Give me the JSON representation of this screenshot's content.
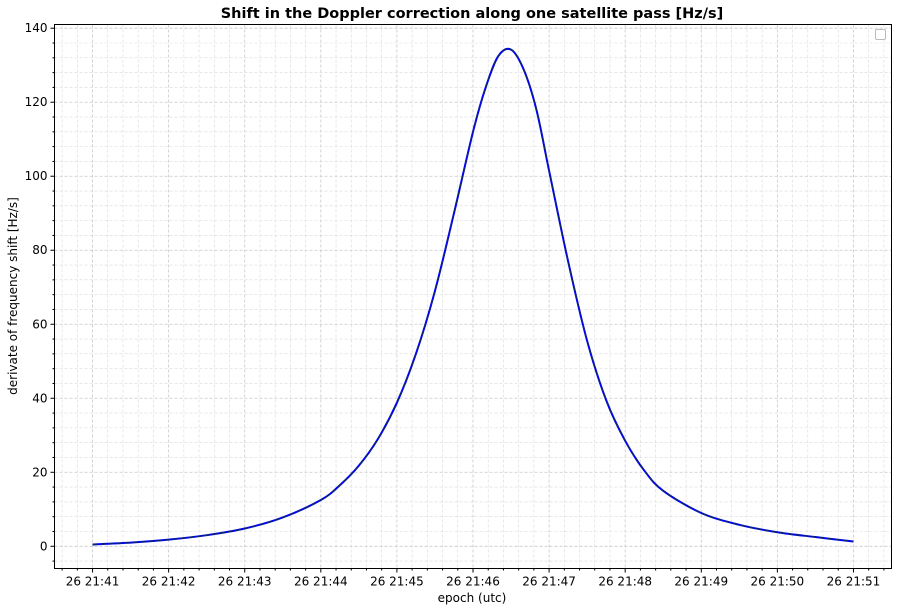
{
  "chart_data": {
    "type": "line",
    "title": "Shift in the Doppler correction along one satellite pass [Hz/s]",
    "xlabel": "epoch (utc)",
    "ylabel": "derivate of frequency shift [Hz/s]",
    "x_ticks": [
      "26 21:41",
      "26 21:42",
      "26 21:43",
      "26 21:44",
      "26 21:45",
      "26 21:46",
      "26 21:47",
      "26 21:48",
      "26 21:49",
      "26 21:50",
      "26 21:51"
    ],
    "xlim": [
      "21:40:30",
      "21:51:30"
    ],
    "ylim": [
      -6,
      141
    ],
    "y_ticks": [
      0,
      20,
      40,
      60,
      80,
      100,
      120,
      140
    ],
    "grid": true,
    "minor_grid": true,
    "legend": "top-right (empty)",
    "series": [
      {
        "color": "#0000ff",
        "style": "solid",
        "x": [
          "21:41:00",
          "21:41:30",
          "21:42:00",
          "21:42:30",
          "21:43:00",
          "21:43:30",
          "21:44:00",
          "21:44:15",
          "21:44:30",
          "21:44:45",
          "21:45:00",
          "21:45:15",
          "21:45:30",
          "21:45:45",
          "21:46:00",
          "21:46:10",
          "21:46:20",
          "21:46:30",
          "21:46:40",
          "21:46:50",
          "21:47:00",
          "21:47:15",
          "21:47:30",
          "21:47:45",
          "21:48:00",
          "21:48:15",
          "21:48:30",
          "21:49:00",
          "21:49:30",
          "21:50:00",
          "21:50:30",
          "21:51:00"
        ],
        "y": [
          0.5,
          1.0,
          1.8,
          3.0,
          4.8,
          7.8,
          12.5,
          16.5,
          21.8,
          29.0,
          38.8,
          52.0,
          69.0,
          90.0,
          112.0,
          124.0,
          132.5,
          134.2,
          128.8,
          118.0,
          101.5,
          77.0,
          55.5,
          39.5,
          28.5,
          20.5,
          15.0,
          9.0,
          5.8,
          3.8,
          2.5,
          1.3
        ]
      },
      {
        "color": "#0d2a5c",
        "style": "dashed",
        "x": [
          "21:41:00",
          "21:41:30",
          "21:42:00",
          "21:42:30",
          "21:43:00",
          "21:43:30",
          "21:44:00",
          "21:44:15",
          "21:44:30",
          "21:44:45",
          "21:45:00",
          "21:45:15",
          "21:45:30",
          "21:45:45",
          "21:46:00",
          "21:46:10",
          "21:46:20",
          "21:46:30",
          "21:46:40",
          "21:46:50",
          "21:47:00",
          "21:47:15",
          "21:47:30",
          "21:47:45",
          "21:48:00",
          "21:48:15",
          "21:48:30",
          "21:49:00",
          "21:49:30",
          "21:50:00",
          "21:50:30",
          "21:51:00"
        ],
        "y": [
          0.5,
          1.0,
          1.8,
          3.0,
          4.8,
          7.8,
          12.5,
          16.5,
          21.8,
          29.0,
          38.8,
          52.0,
          69.0,
          90.0,
          112.0,
          124.0,
          132.5,
          134.2,
          128.8,
          118.0,
          101.5,
          77.0,
          55.5,
          39.5,
          28.5,
          20.5,
          15.0,
          9.0,
          5.8,
          3.8,
          2.5,
          1.3
        ]
      }
    ]
  }
}
